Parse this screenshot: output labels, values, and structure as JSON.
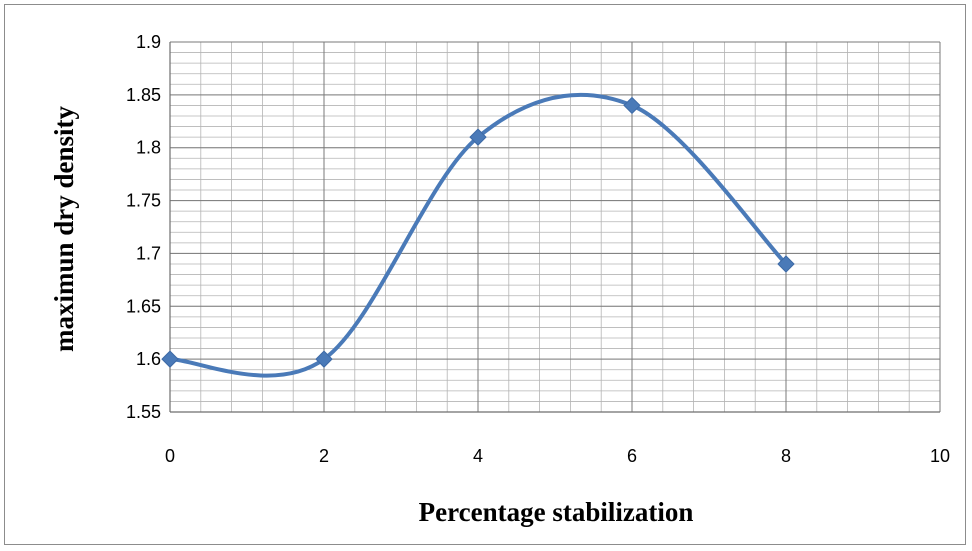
{
  "chart_data": {
    "type": "line",
    "title": "",
    "xlabel": "Percentage stabilization",
    "ylabel": "maximun dry density",
    "xlim": [
      0,
      10
    ],
    "ylim": [
      1.55,
      1.9
    ],
    "x_ticks": [
      "0",
      "2",
      "4",
      "6",
      "8",
      "10"
    ],
    "y_ticks": [
      "1.55",
      "1.6",
      "1.65",
      "1.7",
      "1.75",
      "1.8",
      "1.85",
      "1.9"
    ],
    "grid": true,
    "legend": "none",
    "smooth": true,
    "series": [
      {
        "x": [
          0,
          2,
          4,
          6,
          8
        ],
        "values": [
          1.6,
          1.6,
          1.81,
          1.84,
          1.69
        ],
        "color": "#4a7ab8",
        "marker": "diamond"
      }
    ]
  }
}
